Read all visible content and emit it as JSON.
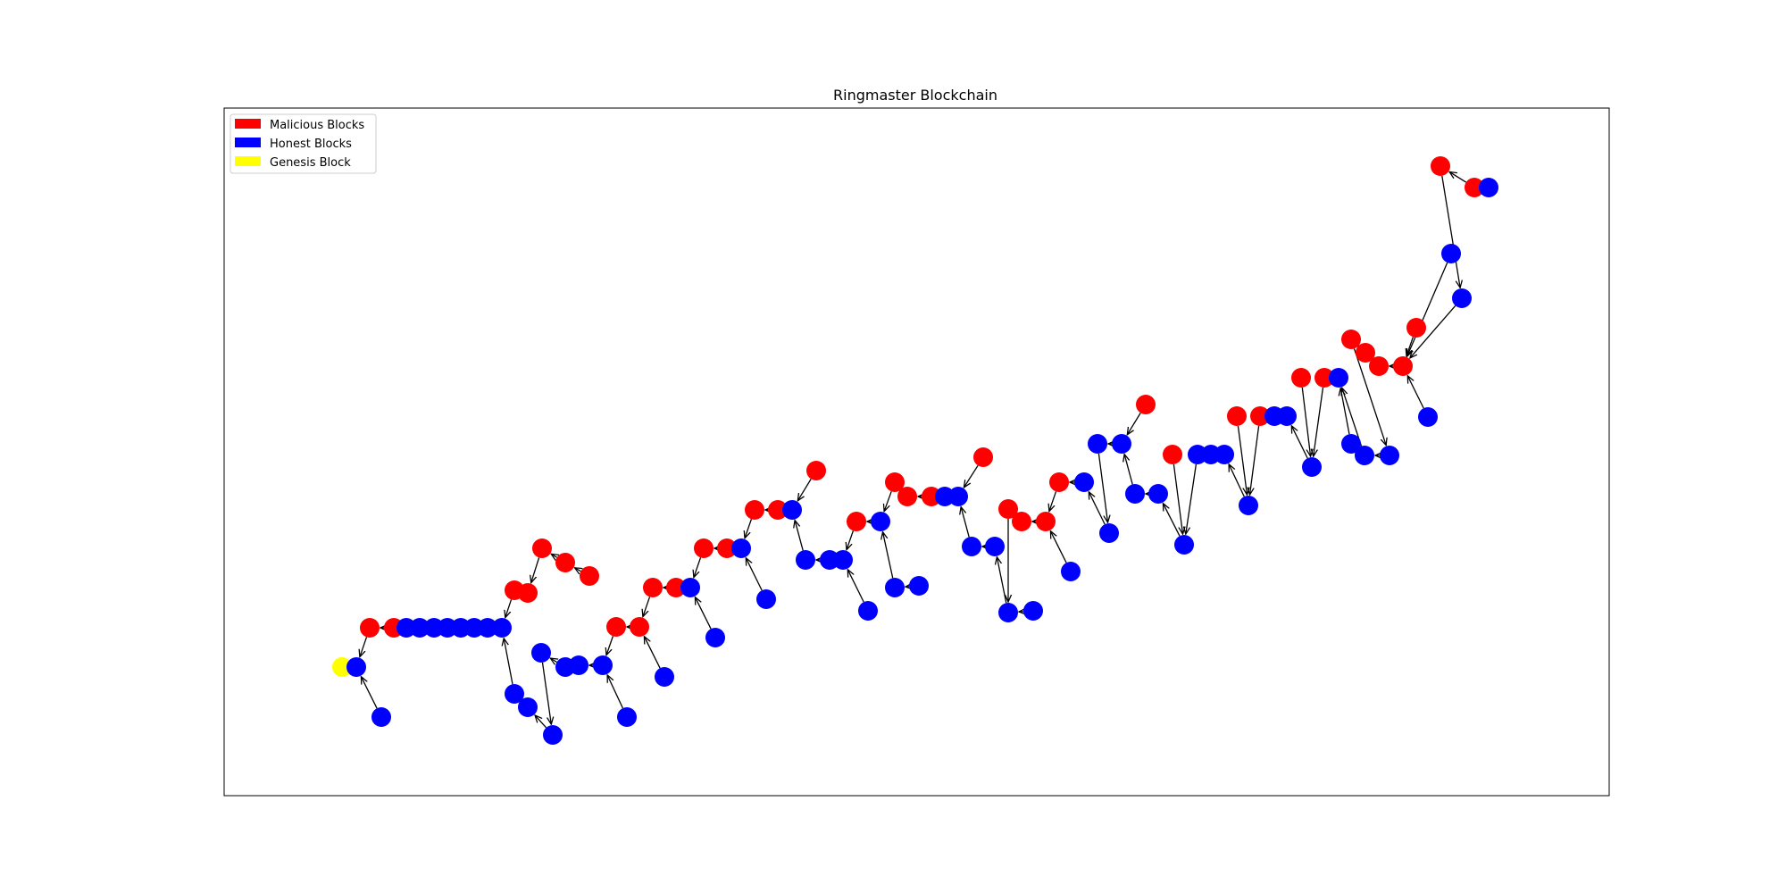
{
  "figure": {
    "title": "Ringmaster Blockchain"
  },
  "colors": {
    "malicious": "#ff0000",
    "honest": "#0000ff",
    "genesis": "#ffff00",
    "edge": "#000000",
    "frame": "#000000"
  },
  "legend": [
    {
      "label": "Malicious Blocks",
      "color": "#ff0000"
    },
    {
      "label": "Honest Blocks",
      "color": "#0000ff"
    },
    {
      "label": "Genesis Block",
      "color": "#ffff00"
    }
  ],
  "chart_data": {
    "type": "graph",
    "title": "Ringmaster Blockchain",
    "node_types": [
      "genesis",
      "honest",
      "malicious"
    ],
    "node_counts": {
      "genesis": 1,
      "honest": 63,
      "malicious": 33
    },
    "legend_placement": "top-left"
  }
}
